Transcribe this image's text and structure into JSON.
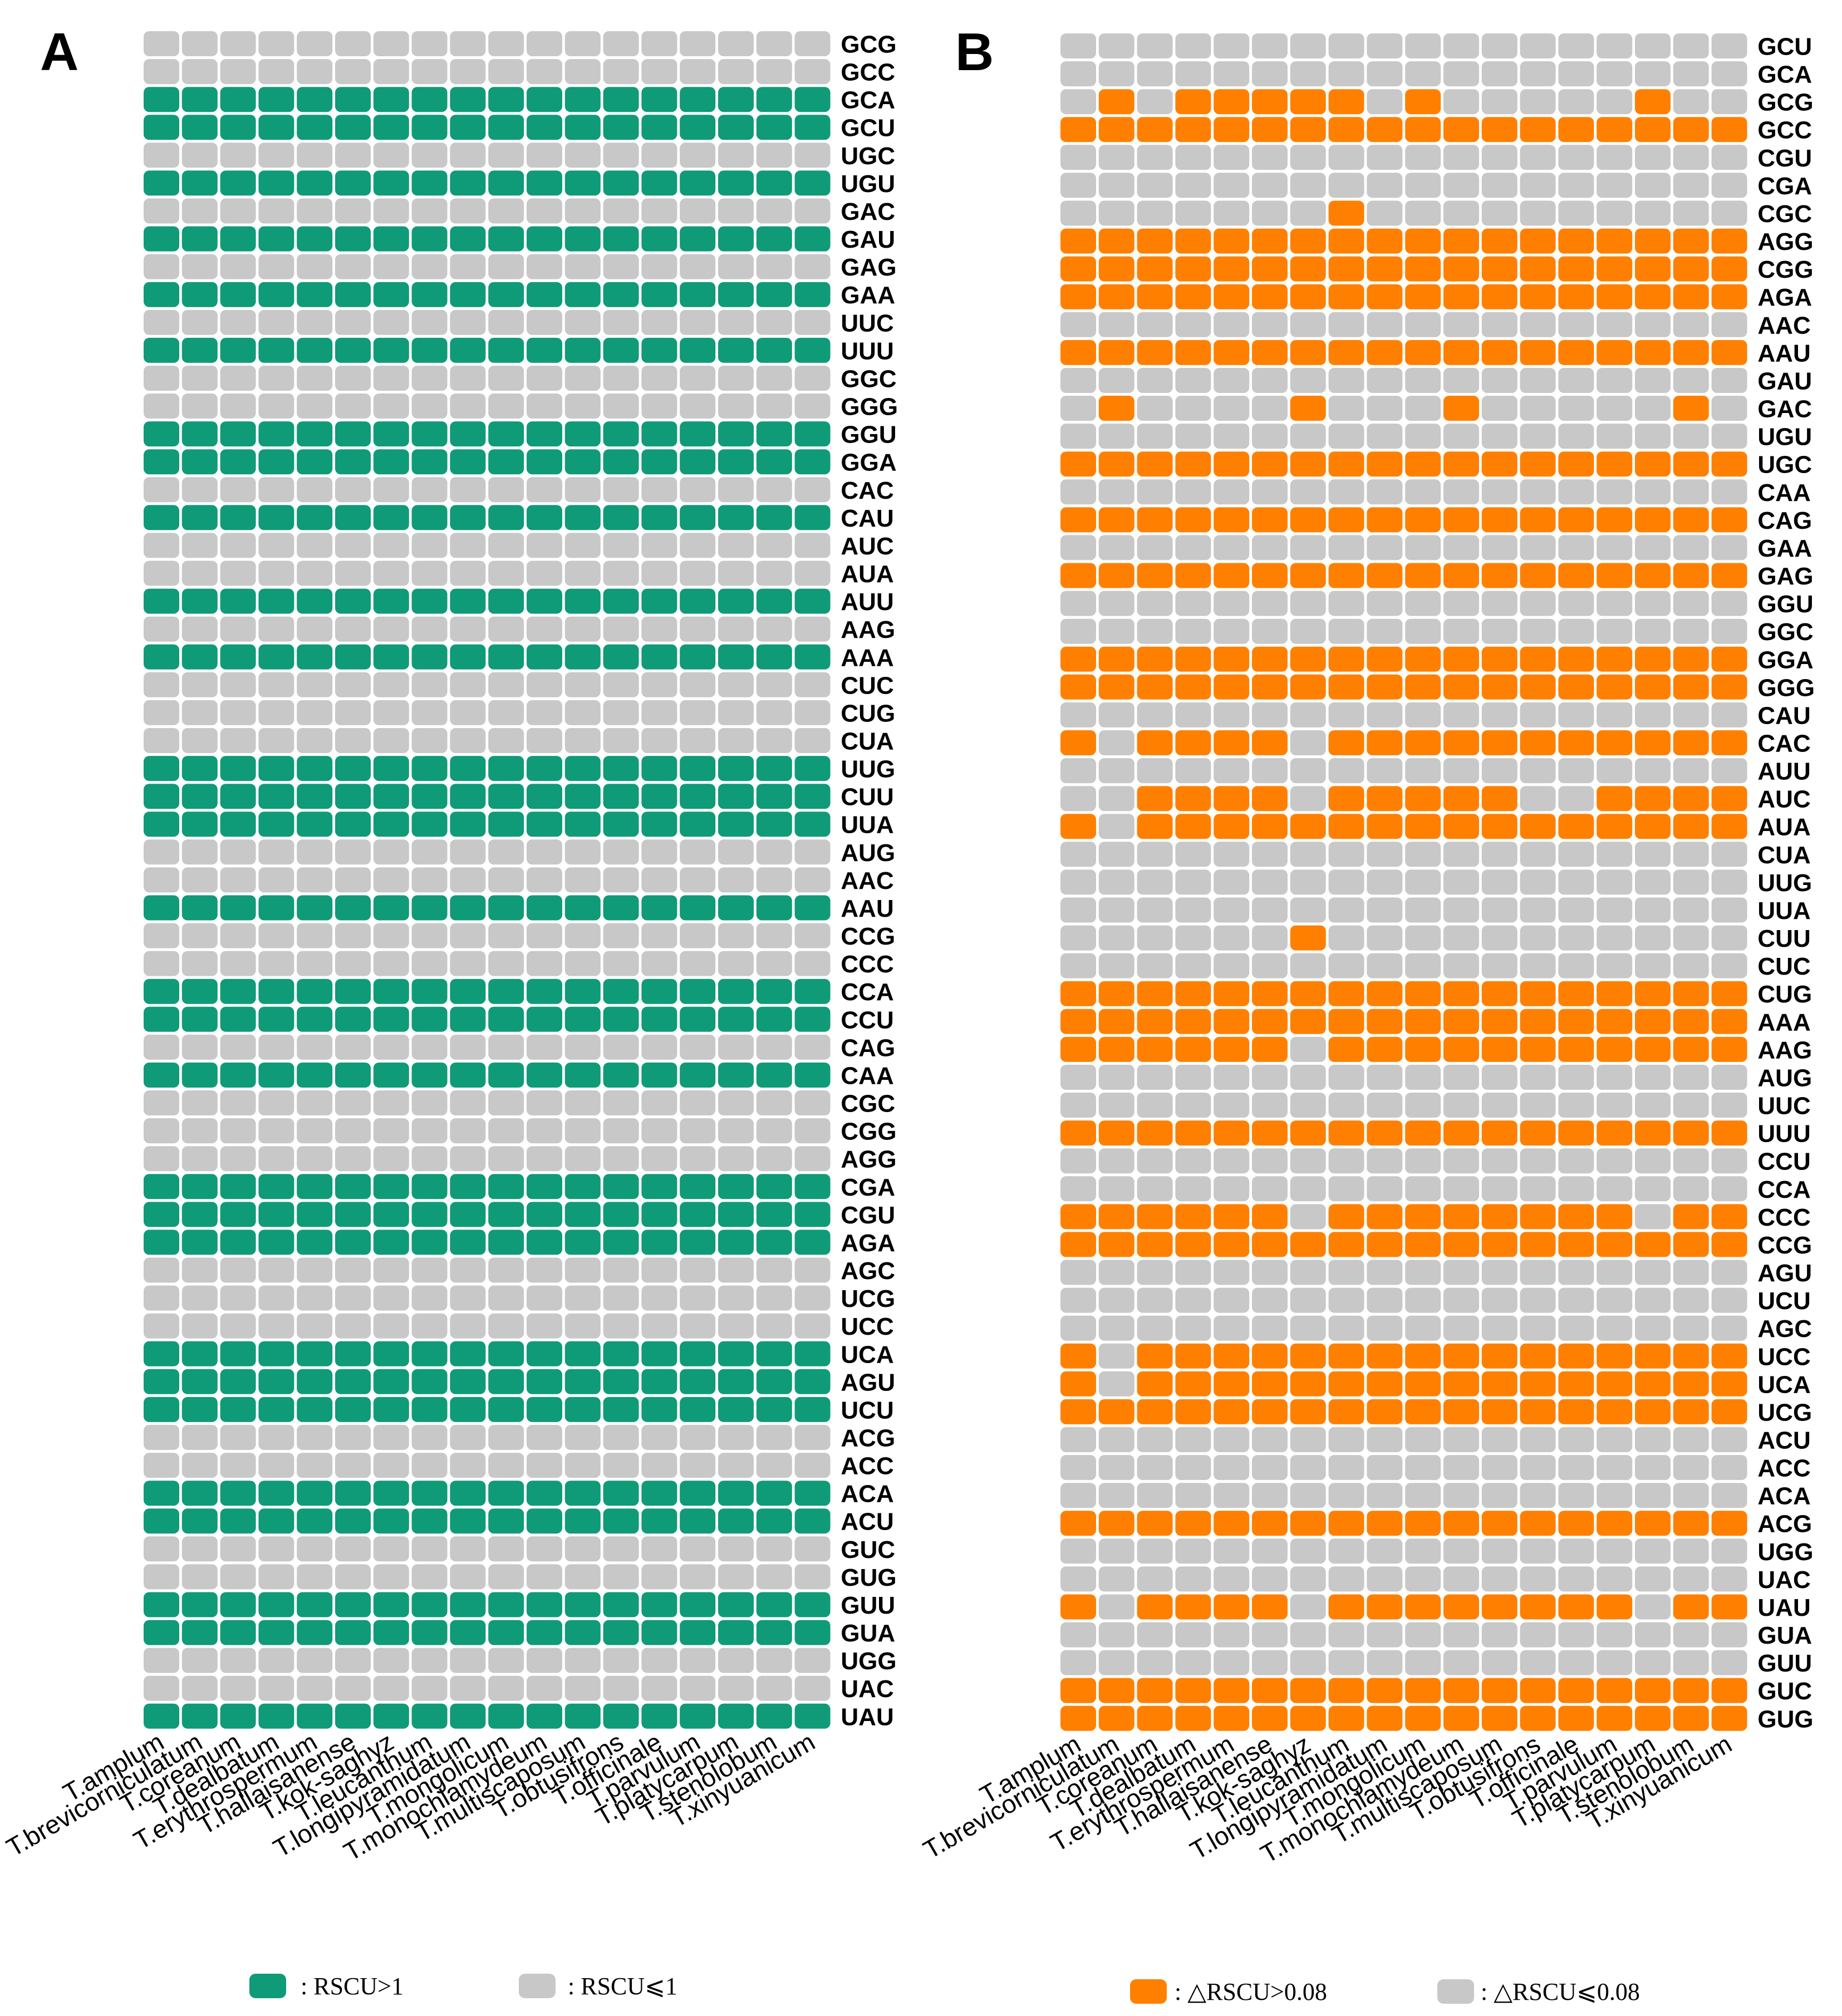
{
  "chart_data": [
    {
      "type": "heatmap",
      "panel_label": "A",
      "species": [
        "T.amplum",
        "T.brevicorniculatum",
        "T.coreanum",
        "T.dealbatum",
        "T.erythrospermum",
        "T.hallaisanense",
        "T.kok-saghyz",
        "T.leucanthum",
        "T.longipyramidatum",
        "T.mongolicum",
        "T.monochlamydeum",
        "T.multiscaposum",
        "T.obtusifrons",
        "T.officinale",
        "T.parvulum",
        "T.platycarpum",
        "T.stenolobum",
        "T.xinyuanicum"
      ],
      "codons": [
        "GCG",
        "GCC",
        "GCA",
        "GCU",
        "UGC",
        "UGU",
        "GAC",
        "GAU",
        "GAG",
        "GAA",
        "UUC",
        "UUU",
        "GGC",
        "GGG",
        "GGU",
        "GGA",
        "CAC",
        "CAU",
        "AUC",
        "AUA",
        "AUU",
        "AAG",
        "AAA",
        "CUC",
        "CUG",
        "CUA",
        "UUG",
        "CUU",
        "UUA",
        "AUG",
        "AAC",
        "AAU",
        "CCG",
        "CCC",
        "CCA",
        "CCU",
        "CAG",
        "CAA",
        "CGC",
        "CGG",
        "AGG",
        "CGA",
        "CGU",
        "AGA",
        "AGC",
        "UCG",
        "UCC",
        "UCA",
        "AGU",
        "UCU",
        "ACG",
        "ACC",
        "ACA",
        "ACU",
        "GUC",
        "GUG",
        "GUU",
        "GUA",
        "UGG",
        "UAC",
        "UAU"
      ],
      "high_rows": [
        2,
        3,
        5,
        7,
        9,
        11,
        14,
        15,
        17,
        20,
        22,
        26,
        27,
        28,
        31,
        34,
        35,
        37,
        41,
        42,
        43,
        47,
        48,
        49,
        52,
        53,
        56,
        57,
        60
      ],
      "exceptions": [],
      "colors": {
        "high": "#0f9b77",
        "low": "#c8c8c8"
      },
      "legend": [
        {
          "label": ": RSCU>1",
          "color": "#0f9b77"
        },
        {
          "label": ": RSCU⩽1",
          "color": "#c8c8c8"
        }
      ]
    },
    {
      "type": "heatmap",
      "panel_label": "B",
      "species": [
        "T.amplum",
        "T.brevicorniculatum",
        "T.coreanum",
        "T.dealbatum",
        "T.erythrospermum",
        "T.hallaisanense",
        "T.kok-saghyz",
        "T.leucanthum",
        "T.longipyramidatum",
        "T.mongolicum",
        "T.monochlamydeum",
        "T.multiscaposum",
        "T.obtusifrons",
        "T.officinale",
        "T.parvulum",
        "T.platycarpum",
        "T.stenolobum",
        "T.xinyuanicum"
      ],
      "codons": [
        "GCU",
        "GCA",
        "GCG",
        "GCC",
        "CGU",
        "CGA",
        "CGC",
        "AGG",
        "CGG",
        "AGA",
        "AAC",
        "AAU",
        "GAU",
        "GAC",
        "UGU",
        "UGC",
        "CAA",
        "CAG",
        "GAA",
        "GAG",
        "GGU",
        "GGC",
        "GGA",
        "GGG",
        "CAU",
        "CAC",
        "AUU",
        "AUC",
        "AUA",
        "CUA",
        "UUG",
        "UUA",
        "CUU",
        "CUC",
        "CUG",
        "AAA",
        "AAG",
        "AUG",
        "UUC",
        "UUU",
        "CCU",
        "CCA",
        "CCC",
        "CCG",
        "AGU",
        "UCU",
        "AGC",
        "UCC",
        "UCA",
        "UCG",
        "ACU",
        "ACC",
        "ACA",
        "ACG",
        "UGG",
        "UAC",
        "UAU",
        "GUA",
        "GUU",
        "GUC",
        "GUG"
      ],
      "high_rows": [
        3,
        7,
        8,
        9,
        11,
        15,
        17,
        19,
        22,
        23,
        34,
        35,
        39,
        43,
        49,
        53,
        59,
        60
      ],
      "exceptions": [
        {
          "row": 2,
          "orange": [
            1,
            3,
            4,
            5,
            6,
            7,
            9,
            15
          ]
        },
        {
          "row": 6,
          "orange": [
            7
          ]
        },
        {
          "row": 13,
          "orange": [
            1,
            6,
            10,
            16
          ]
        },
        {
          "row": 25,
          "orange": [
            0,
            2,
            3,
            4,
            5,
            7,
            8,
            9,
            10,
            11,
            12,
            13,
            14,
            15,
            16,
            17
          ]
        },
        {
          "row": 27,
          "orange": [
            2,
            3,
            4,
            5,
            7,
            8,
            9,
            10,
            11,
            14,
            15,
            16,
            17
          ]
        },
        {
          "row": 28,
          "orange": [
            0,
            2,
            3,
            4,
            5,
            6,
            7,
            8,
            9,
            10,
            11,
            12,
            13,
            14,
            15,
            16,
            17
          ]
        },
        {
          "row": 32,
          "orange": [
            6
          ]
        },
        {
          "row": 36,
          "orange": [
            0,
            1,
            2,
            3,
            4,
            5,
            7,
            8,
            9,
            10,
            11,
            12,
            13,
            14,
            15,
            16,
            17
          ]
        },
        {
          "row": 42,
          "orange": [
            0,
            1,
            2,
            3,
            4,
            5,
            7,
            8,
            9,
            10,
            11,
            12,
            13,
            14,
            16,
            17
          ]
        },
        {
          "row": 47,
          "orange": [
            0,
            2,
            3,
            4,
            5,
            6,
            7,
            8,
            9,
            10,
            11,
            12,
            13,
            14,
            15,
            16,
            17
          ]
        },
        {
          "row": 48,
          "orange": [
            0,
            2,
            3,
            4,
            5,
            6,
            7,
            8,
            9,
            10,
            11,
            12,
            13,
            14,
            15,
            16,
            17
          ]
        },
        {
          "row": 56,
          "orange": [
            0,
            2,
            3,
            4,
            5,
            7,
            8,
            9,
            10,
            11,
            12,
            13,
            14,
            16,
            17
          ]
        }
      ],
      "colors": {
        "high": "#ff8000",
        "low": "#c8c8c8"
      },
      "legend": [
        {
          "label": ": △RSCU>0.08",
          "color": "#ff8000"
        },
        {
          "label": ": △RSCU⩽0.08",
          "color": "#c8c8c8"
        }
      ]
    }
  ]
}
